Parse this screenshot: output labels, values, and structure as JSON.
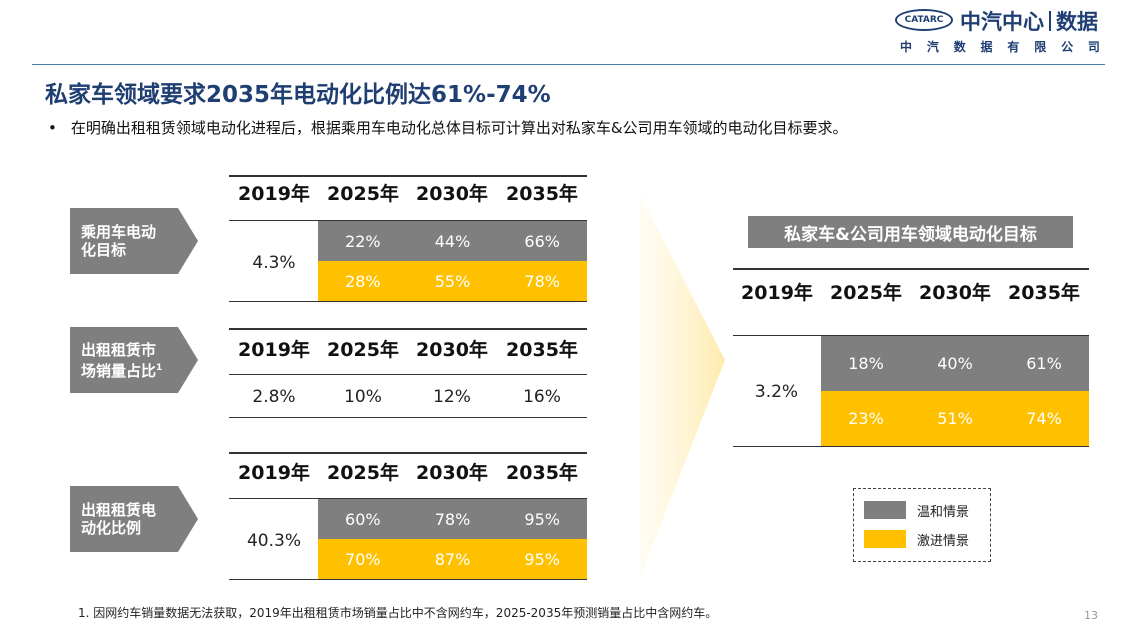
{
  "header": {
    "logo_mark": "CATARC",
    "logo_name_a": "中汽中心",
    "logo_name_b": "数据",
    "logo_sub": [
      "中",
      "汽",
      "数",
      "据",
      "有",
      "限",
      "公",
      "司"
    ]
  },
  "title": "私家车领域要求2035年电动化比例达61%-74%",
  "bullet": "在明确出租租赁领域电动化进程后，根据乘用车电动化总体目标可计算出对私家车&公司用车领域的电动化目标要求。",
  "years": [
    "2019年",
    "2025年",
    "2030年",
    "2035年"
  ],
  "tables": {
    "passenger": {
      "label": "乘用车电动化目标",
      "label_lines": [
        "乘用车电动",
        "化目标"
      ],
      "base": "4.3%",
      "moderate": [
        "22%",
        "44%",
        "66%"
      ],
      "aggressive": [
        "28%",
        "55%",
        "78%"
      ]
    },
    "rental_share": {
      "label_lines": [
        "出租租赁市",
        "场销量占比"
      ],
      "footnote_mark": "1",
      "values": [
        "2.8%",
        "10%",
        "12%",
        "16%"
      ]
    },
    "rental_ev": {
      "label_lines": [
        "出租租赁电",
        "动化比例"
      ],
      "base": "40.3%",
      "moderate": [
        "60%",
        "78%",
        "95%"
      ],
      "aggressive": [
        "70%",
        "87%",
        "95%"
      ]
    }
  },
  "private": {
    "title": "私家车&公司用车领域电动化目标",
    "base": "3.2%",
    "moderate": [
      "18%",
      "40%",
      "61%"
    ],
    "aggressive": [
      "23%",
      "51%",
      "74%"
    ]
  },
  "legend": {
    "moderate": "温和情景",
    "aggressive": "激进情景"
  },
  "colors": {
    "moderate": "#7f7f7f",
    "aggressive": "#ffc000",
    "brand": "#1f3f73"
  },
  "footnote": "1. 因网约车销量数据无法获取，2019年出租租赁市场销量占比中不含网约车，2025-2035年预测销量占比中含网约车。",
  "page_number": "13"
}
